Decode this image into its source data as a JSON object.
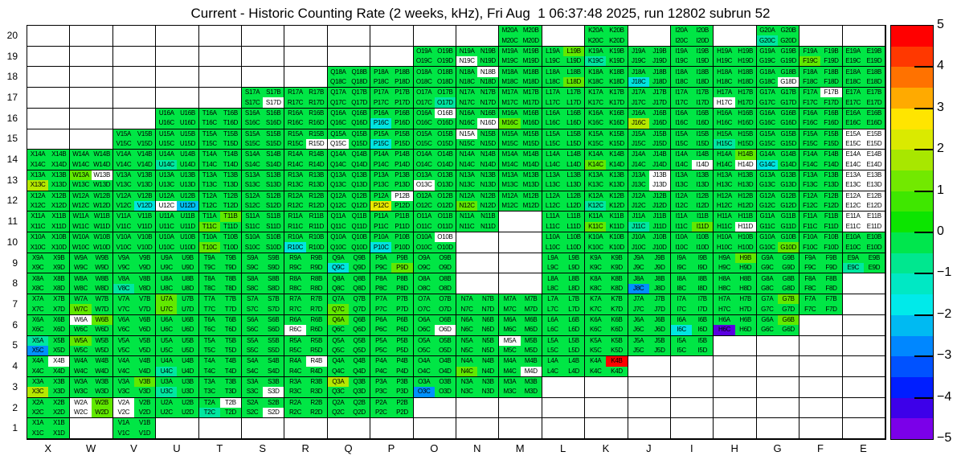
{
  "title": "Current - Historic Counting Rate (2 weeks, kHz), Fri Aug  1 06:37:48 2025, run 12802 subrun 52",
  "chart_data": {
    "type": "heatmap",
    "title": "Current - Historic Counting Rate (2 weeks, kHz), Fri Aug  1 06:37:48 2025, run 12802 subrun 52",
    "x_labels": [
      "X",
      "W",
      "V",
      "U",
      "T",
      "S",
      "R",
      "Q",
      "P",
      "O",
      "N",
      "M",
      "L",
      "K",
      "J",
      "I",
      "H",
      "G",
      "F",
      "E"
    ],
    "y_labels": [
      "20",
      "19",
      "18",
      "17",
      "16",
      "15",
      "14",
      "13",
      "12",
      "11",
      "10",
      "9",
      "8",
      "7",
      "6",
      "5",
      "4",
      "3",
      "2",
      "1"
    ],
    "cell_sublabels": [
      "A",
      "B",
      "C",
      "D"
    ],
    "label_pattern": "{column}{row}{sub}",
    "grid": {
      "columns": 20,
      "rows": 20,
      "lines": "on"
    },
    "blocks_by_row": {
      "20": [
        "M",
        "K",
        "I",
        "G"
      ],
      "19": [
        "O",
        "N",
        "M",
        "L",
        "K",
        "J",
        "I",
        "H",
        "G",
        "F",
        "E"
      ],
      "18": [
        "Q",
        "P",
        "O",
        "N",
        "M",
        "L",
        "K",
        "J",
        "I",
        "H",
        "G",
        "F",
        "E"
      ],
      "17": [
        "S",
        "R",
        "Q",
        "P",
        "O",
        "N",
        "M",
        "L",
        "K",
        "J",
        "I",
        "H",
        "G",
        "F",
        "E"
      ],
      "16": [
        "U",
        "T",
        "S",
        "R",
        "Q",
        "P",
        "O",
        "N",
        "M",
        "L",
        "K",
        "J",
        "I",
        "H",
        "G",
        "F",
        "E"
      ],
      "15": [
        "V",
        "U",
        "T",
        "S",
        "R",
        "Q",
        "P",
        "O",
        "N",
        "M",
        "L",
        "K",
        "J",
        "I",
        "H",
        "G",
        "F",
        "E"
      ],
      "14": [
        "X",
        "W",
        "V",
        "U",
        "T",
        "S",
        "R",
        "Q",
        "P",
        "O",
        "N",
        "M",
        "L",
        "K",
        "J",
        "I",
        "H",
        "G",
        "F",
        "E"
      ],
      "13": [
        "X",
        "W",
        "V",
        "U",
        "T",
        "S",
        "R",
        "Q",
        "P",
        "O",
        "N",
        "M",
        "L",
        "K",
        "J",
        "I",
        "H",
        "G",
        "F",
        "E"
      ],
      "12": [
        "X",
        "W",
        "V",
        "U",
        "T",
        "S",
        "R",
        "Q",
        "P",
        "O",
        "N",
        "M",
        "L",
        "K",
        "J",
        "I",
        "H",
        "G",
        "F",
        "E"
      ],
      "11": [
        "X",
        "W",
        "V",
        "U",
        "T",
        "S",
        "R",
        "Q",
        "P",
        "O",
        "N",
        "L",
        "K",
        "J",
        "I",
        "H",
        "G",
        "F",
        "E"
      ],
      "10": [
        "X",
        "W",
        "V",
        "U",
        "T",
        "S",
        "R",
        "Q",
        "P",
        "O",
        "L",
        "K",
        "J",
        "I",
        "H",
        "G",
        "F",
        "E"
      ],
      "9": [
        "X",
        "W",
        "V",
        "U",
        "T",
        "S",
        "R",
        "Q",
        "P",
        "O",
        "L",
        "K",
        "J",
        "I",
        "H",
        "G",
        "F",
        "E"
      ],
      "8": [
        "X",
        "W",
        "V",
        "U",
        "T",
        "S",
        "R",
        "Q",
        "P",
        "O",
        "L",
        "K",
        "J",
        "I",
        "H",
        "G",
        "F"
      ],
      "7": [
        "X",
        "W",
        "V",
        "U",
        "T",
        "S",
        "R",
        "Q",
        "P",
        "O",
        "N",
        "M",
        "L",
        "K",
        "J",
        "I",
        "H",
        "G",
        "F"
      ],
      "6": [
        "X",
        "W",
        "V",
        "U",
        "T",
        "S",
        "R",
        "Q",
        "P",
        "O",
        "N",
        "M",
        "L",
        "K",
        "J",
        "I",
        "H",
        "G"
      ],
      "5": [
        "X",
        "W",
        "V",
        "U",
        "T",
        "S",
        "R",
        "Q",
        "P",
        "O",
        "N",
        "M",
        "L",
        "K",
        "J",
        "I"
      ],
      "4": [
        "X",
        "W",
        "V",
        "U",
        "T",
        "S",
        "R",
        "Q",
        "P",
        "O",
        "N",
        "M",
        "L",
        "K"
      ],
      "3": [
        "X",
        "W",
        "V",
        "U",
        "T",
        "S",
        "R",
        "Q",
        "P",
        "O",
        "N",
        "M"
      ],
      "2": [
        "X",
        "W",
        "V",
        "U",
        "T",
        "S",
        "R",
        "Q",
        "P"
      ],
      "1": [
        "X",
        "V"
      ]
    },
    "default_color_key": "g",
    "palette": {
      "g": "#00e645",
      "lg": "#61e900",
      "yg": "#b5e800",
      "y": "#e8e800",
      "cg": "#00e7a0",
      "c": "#00e5e0",
      "bc": "#00c0f2",
      "b": "#0090ff",
      "v": "#5a00e0",
      "r": "#ff0000",
      "w": "#ffffff"
    },
    "cell_color_overrides": {
      "G20C": "cg",
      "N19C": "w",
      "K19C": "cg",
      "L19B": "lg",
      "F19C": "lg",
      "N18B": "w",
      "L18D": "lg",
      "J18C": "c",
      "G18D": "w",
      "S17D": "w",
      "O17D": "cg",
      "H17C": "w",
      "F17B": "w",
      "P16C": "c",
      "O16B": "w",
      "N16D": "w",
      "M16C": "lg",
      "J16C": "yg",
      "R15D": "w",
      "Q15C": "w",
      "P15C": "c",
      "N15A": "w",
      "H15C": "cg",
      "E15A": "w",
      "E15B": "w",
      "E15C": "w",
      "E15D": "w",
      "U14C": "cg",
      "K14C": "lg",
      "I14D": "w",
      "H14B": "lg",
      "H14D": "w",
      "G14C": "c",
      "E14A": "w",
      "E14B": "w",
      "E14C": "w",
      "E14D": "w",
      "X13C": "yg",
      "W13A": "lg",
      "W13B": "w",
      "O13C": "w",
      "J13B": "w",
      "J13D": "w",
      "E13A": "w",
      "E13B": "w",
      "E13C": "w",
      "E13D": "w",
      "V12D": "c",
      "U12C": "w",
      "U12D": "bc",
      "P12B": "w",
      "P12C": "y",
      "N12C": "lg",
      "K12C": "cg",
      "E12A": "w",
      "E12B": "w",
      "E12C": "w",
      "E12D": "w",
      "T11B": "lg",
      "T11C": "lg",
      "K11C": "lg",
      "J11C": "cg",
      "I11D": "lg",
      "H11D": "w",
      "E11A": "w",
      "E11B": "w",
      "E11C": "w",
      "E11D": "w",
      "T10C": "lg",
      "R10C": "c",
      "P10C": "c",
      "O10B": "w",
      "G10D": "lg",
      "Q9C": "c",
      "P9D": "lg",
      "H9B": "lg",
      "E9C": "cg",
      "V8C": "cg",
      "J8C": "b",
      "W7C": "lg",
      "U7A": "lg",
      "U7C": "lg",
      "Q7C": "lg",
      "G7B": "lg",
      "W6A": "w",
      "W6B": "lg",
      "R6C": "w",
      "Q6A": "lg",
      "O6D": "w",
      "I6C": "c",
      "H6C": "v",
      "G6B": "lg",
      "X5A": "cg",
      "X5C": "b",
      "W5A": "lg",
      "M5A": "w",
      "X4B": "w",
      "U4C": "cg",
      "R4B": "w",
      "N4C": "lg",
      "M4D": "w",
      "K4B": "r",
      "X3C": "yg",
      "V3B": "lg",
      "U3C": "cg",
      "S3D": "w",
      "Q3A": "yg",
      "O3C": "b",
      "W2A": "w",
      "W2B": "lg",
      "W2C": "w",
      "W2D": "lg",
      "V2A": "w",
      "V2C": "w",
      "T2B": "w",
      "T2C": "cg",
      "S2D": "w"
    },
    "colorbar": {
      "min": -5,
      "max": 5,
      "tick_labels": [
        "5",
        "4",
        "3",
        "2",
        "1",
        "0",
        "−1",
        "−2",
        "−3",
        "−4",
        "−5"
      ],
      "band_colors_top_to_bottom": [
        "#ff0000",
        "#ff3800",
        "#ff7200",
        "#ffaa00",
        "#ffe500",
        "#daea00",
        "#a8e700",
        "#72e900",
        "#3fe700",
        "#0ce500",
        "#00e64d",
        "#00e78f",
        "#00e8c4",
        "#00eaea",
        "#00baf2",
        "#0087ff",
        "#0052ff",
        "#001eff",
        "#3d00e9",
        "#7b00e9"
      ]
    }
  }
}
